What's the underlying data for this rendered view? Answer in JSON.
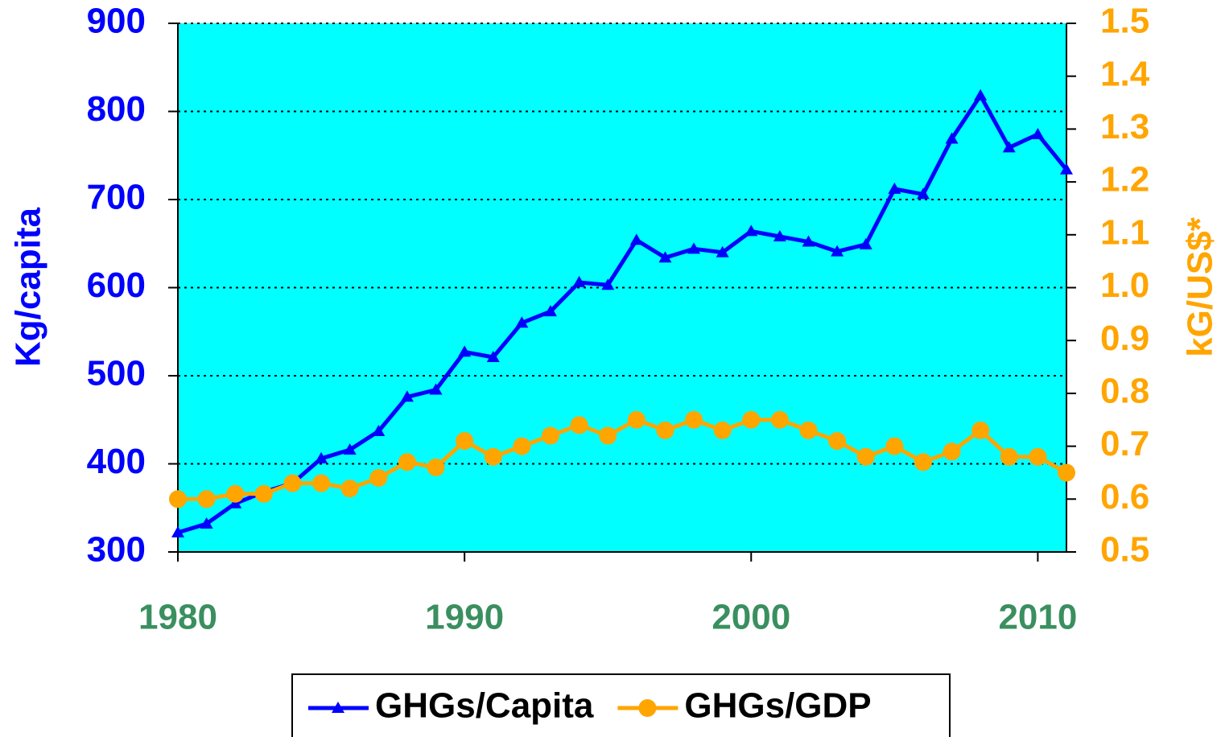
{
  "chart_data": {
    "type": "line",
    "x": [
      1980,
      1981,
      1982,
      1983,
      1984,
      1985,
      1986,
      1987,
      1988,
      1989,
      1990,
      1991,
      1992,
      1993,
      1994,
      1995,
      1996,
      1997,
      1998,
      1999,
      2000,
      2001,
      2002,
      2003,
      2004,
      2005,
      2006,
      2007,
      2008,
      2009,
      2010,
      2011
    ],
    "series": [
      {
        "name": "GHGs/Capita",
        "color": "#0000ff",
        "marker": "triangle",
        "values": [
          322,
          332,
          355,
          368,
          378,
          406,
          416,
          437,
          476,
          484,
          527,
          521,
          560,
          573,
          606,
          603,
          654,
          634,
          644,
          640,
          664,
          658,
          652,
          641,
          649,
          712,
          706,
          769,
          818,
          759,
          774,
          734
        ]
      },
      {
        "name": "GHGs/GDP",
        "color": "#ffa500",
        "marker": "circle",
        "axis": "y2",
        "values": [
          0.6,
          0.6,
          0.61,
          0.61,
          0.63,
          0.63,
          0.62,
          0.64,
          0.67,
          0.66,
          0.71,
          0.68,
          0.7,
          0.72,
          0.74,
          0.72,
          0.75,
          0.73,
          0.75,
          0.73,
          0.75,
          0.75,
          0.73,
          0.71,
          0.68,
          0.7,
          0.67,
          0.69,
          0.73,
          0.68,
          0.68,
          0.65
        ]
      }
    ],
    "y_label": "Kg/capita",
    "y2_label": "kG/US$*",
    "xlim": [
      1980,
      2011
    ],
    "xticks": [
      1980,
      1990,
      2000,
      2010
    ],
    "ylim": [
      300,
      900
    ],
    "yticks": [
      300,
      400,
      500,
      600,
      700,
      800,
      900
    ],
    "y2lim": [
      0.5,
      1.5
    ],
    "y2ticks": [
      0.5,
      0.6,
      0.7,
      0.8,
      0.9,
      {
        "value": 1,
        "label": "1.0"
      },
      1.1,
      1.2,
      1.3,
      1.4,
      1.5
    ],
    "grid": true,
    "background": "#00ffff",
    "legend": "bottom"
  }
}
